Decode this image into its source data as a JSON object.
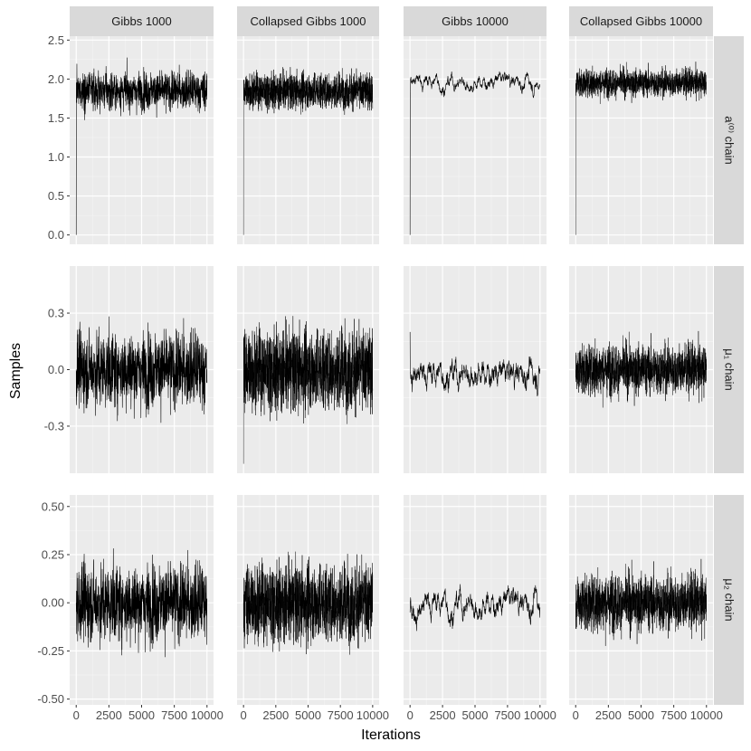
{
  "chart_data": {
    "type": "line",
    "xlabel": "Iterations",
    "ylabel": "Samples",
    "x_ticks": [
      "0",
      "2500",
      "5000",
      "7500",
      "10000"
    ],
    "x_tick_values": [
      0,
      2500,
      5000,
      7500,
      10000
    ],
    "xlim": [
      -500,
      10500
    ],
    "columns": [
      "Gibbs 1000",
      "Collapsed Gibbs 1000",
      "Gibbs 10000",
      "Collapsed Gibbs 10000"
    ],
    "rows": [
      {
        "label": "a⁽⁰⁾ chain",
        "ylim": [
          -0.12,
          2.55
        ],
        "y_ticks": [
          "0.0",
          "0.5",
          "1.0",
          "1.5",
          "2.0",
          "2.5"
        ],
        "y_tick_values": [
          0,
          0.5,
          1.0,
          1.5,
          2.0,
          2.5
        ]
      },
      {
        "label": "μ₁ chain",
        "ylim": [
          -0.55,
          0.55
        ],
        "y_ticks": [
          "-0.3",
          "0.0",
          "0.3"
        ],
        "y_tick_values": [
          -0.3,
          0.0,
          0.3
        ]
      },
      {
        "label": "μ₂ chain",
        "ylim": [
          -0.53,
          0.56
        ],
        "y_ticks": [
          "-0.50",
          "-0.25",
          "0.00",
          "0.25",
          "0.50"
        ],
        "y_tick_values": [
          -0.5,
          -0.25,
          0.0,
          0.25,
          0.5
        ]
      }
    ],
    "traces": [
      [
        {
          "start": 0.0,
          "mean": 1.85,
          "sd": 0.17,
          "n": 1000,
          "rho": 0.0
        },
        {
          "start": 0.0,
          "mean": 1.85,
          "sd": 0.16,
          "n": 10000,
          "rho": 0.0
        },
        {
          "start": 0.0,
          "mean": 1.97,
          "sd": 0.12,
          "n": 1000,
          "rho": 0.97
        },
        {
          "start": 0.0,
          "mean": 1.95,
          "sd": 0.12,
          "n": 10000,
          "rho": 0.0
        }
      ],
      [
        {
          "start": 0.0,
          "mean": 0.0,
          "sd": 0.14,
          "n": 1000,
          "rho": 0.0
        },
        {
          "start": -0.5,
          "mean": 0.0,
          "sd": 0.15,
          "n": 10000,
          "rho": 0.0
        },
        {
          "start": 0.2,
          "mean": -0.02,
          "sd": 0.06,
          "n": 1000,
          "rho": 0.9
        },
        {
          "start": 0.0,
          "mean": 0.0,
          "sd": 0.09,
          "n": 10000,
          "rho": 0.0
        }
      ],
      [
        {
          "start": 0.0,
          "mean": 0.0,
          "sd": 0.14,
          "n": 1000,
          "rho": 0.0
        },
        {
          "start": 0.0,
          "mean": 0.0,
          "sd": 0.14,
          "n": 10000,
          "rho": 0.0
        },
        {
          "start": -0.05,
          "mean": 0.0,
          "sd": 0.08,
          "n": 1000,
          "rho": 0.96
        },
        {
          "start": 0.0,
          "mean": 0.0,
          "sd": 0.1,
          "n": 10000,
          "rho": 0.0
        }
      ]
    ],
    "grid": true,
    "legend": "none"
  },
  "colors": {
    "panel_background": "#ebebeb",
    "grid_major": "#ffffff",
    "grid_minor": "#f5f5f5",
    "strip_background": "#d9d9d9",
    "line": "#000000",
    "tick_text": "#4d4d4d"
  }
}
